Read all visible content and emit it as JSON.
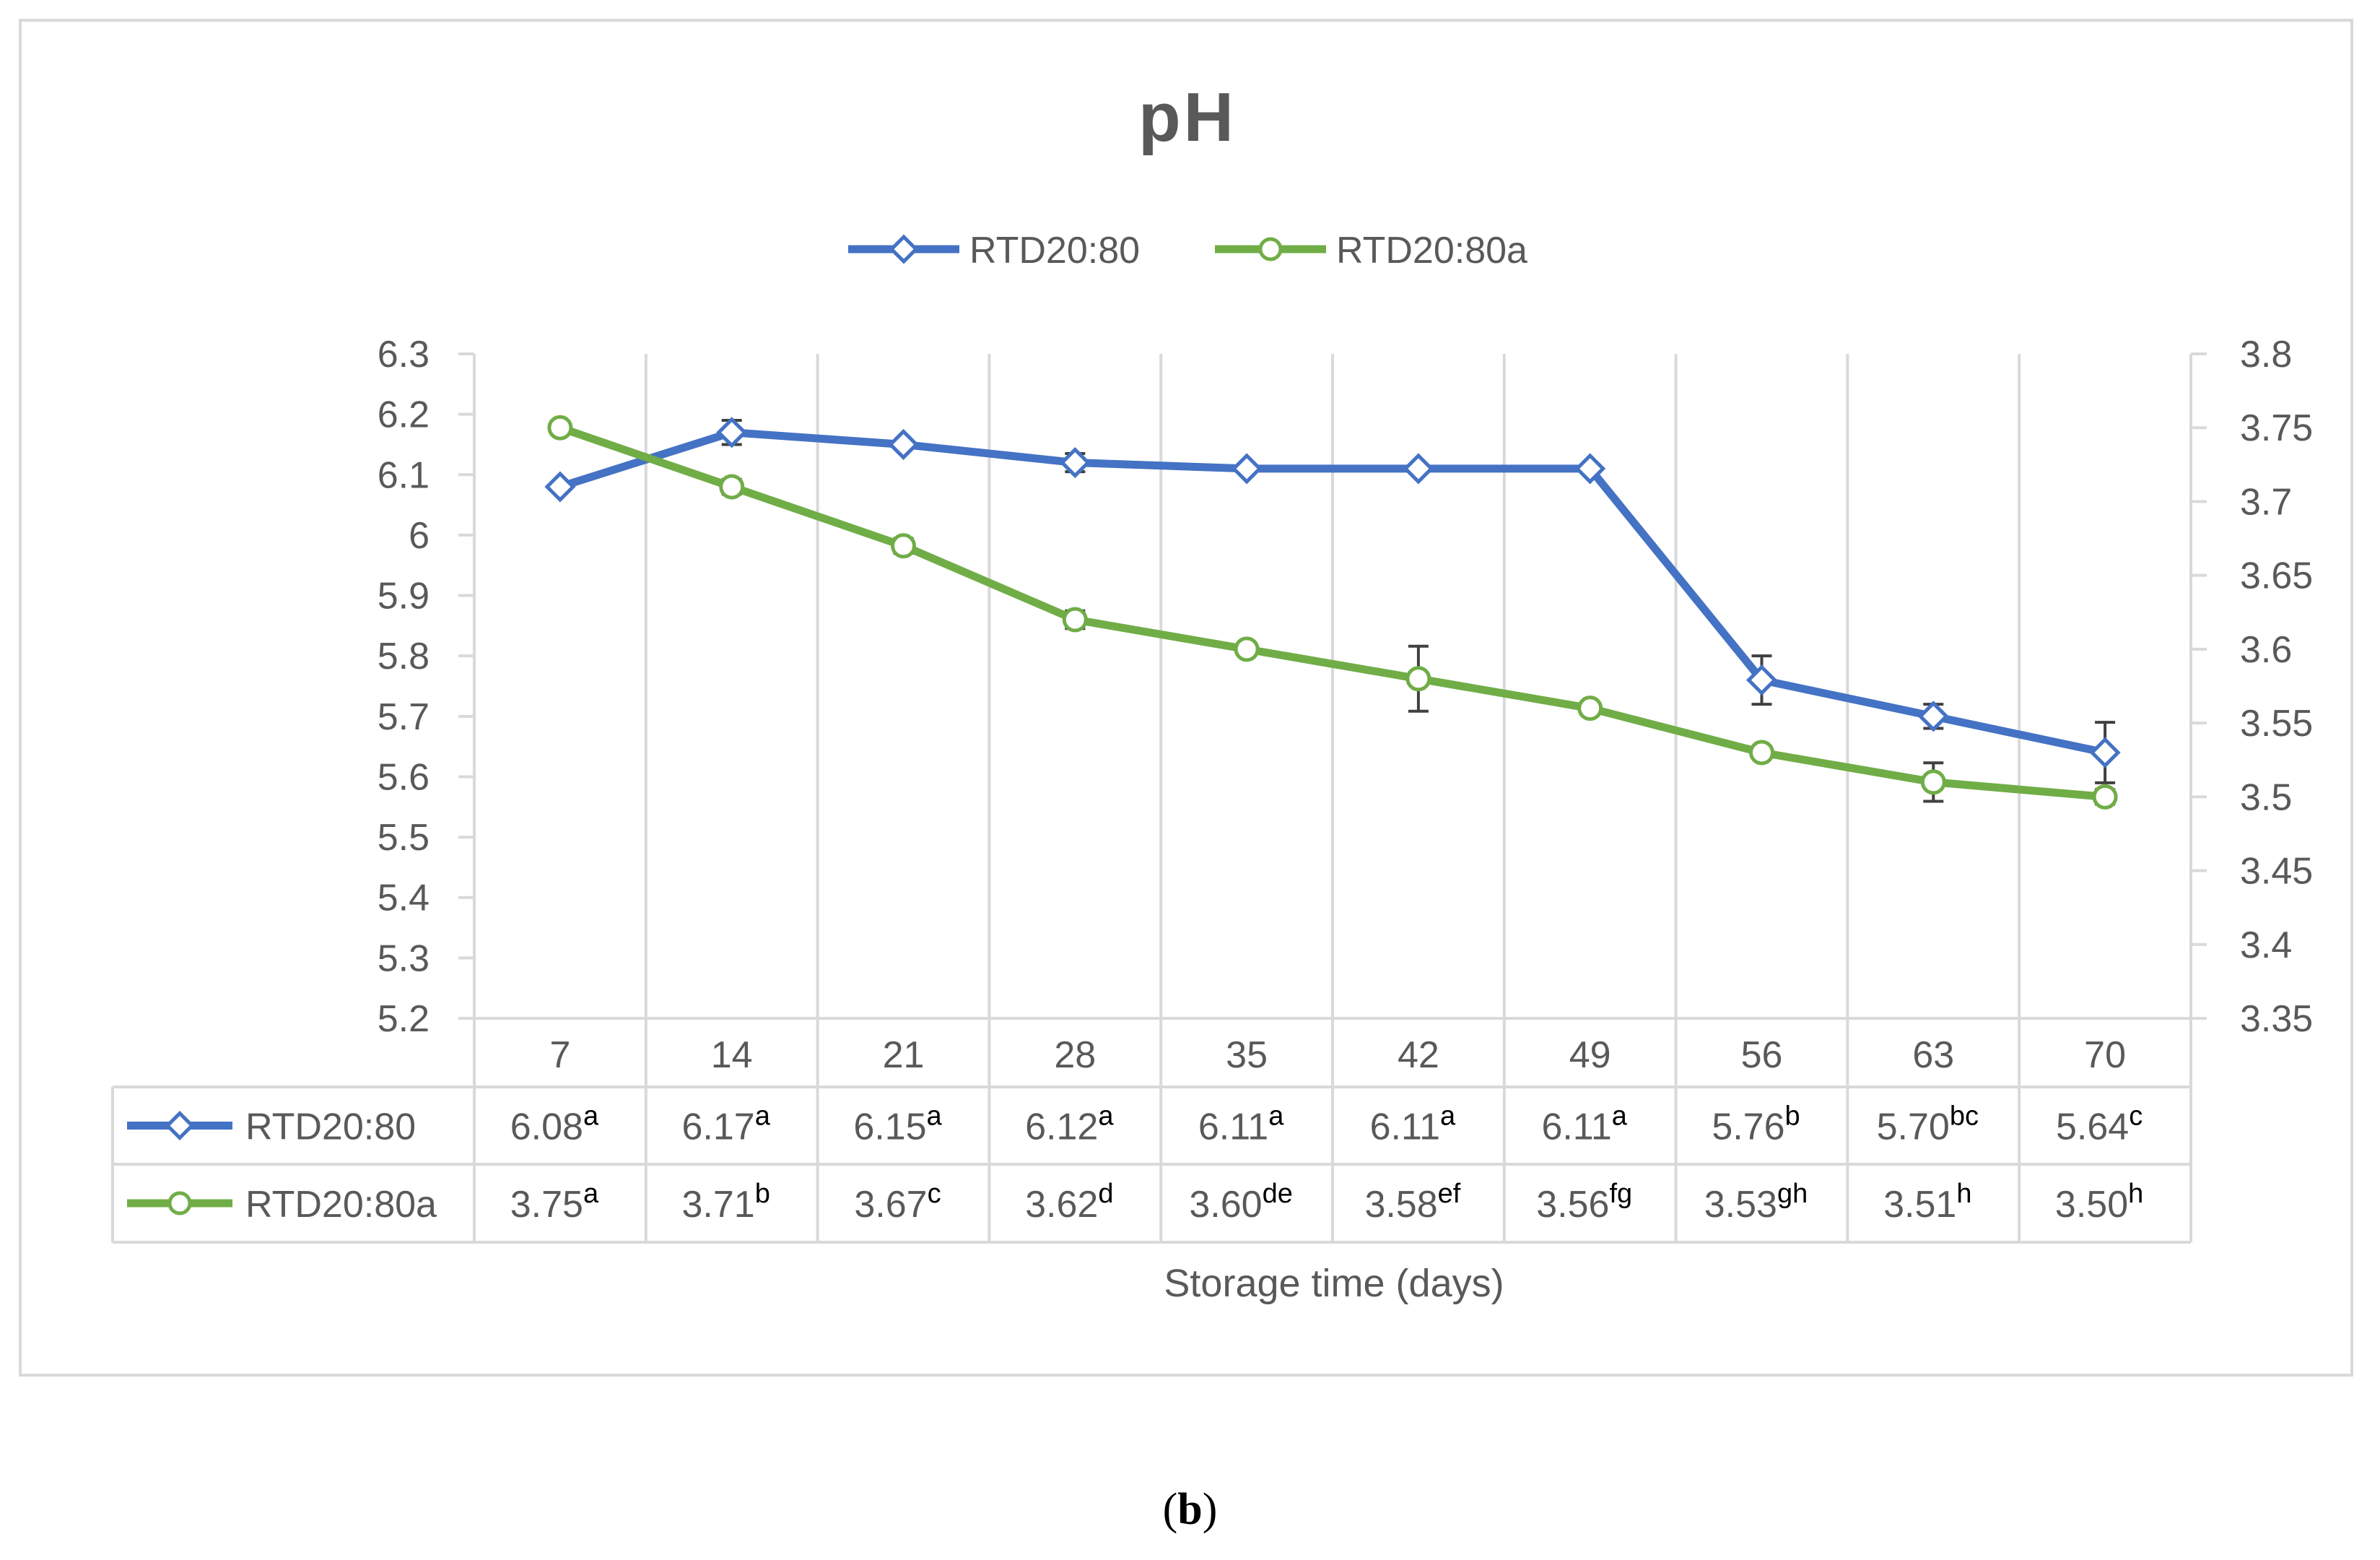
{
  "caption": {
    "open": "(",
    "label": "b",
    "close": ")"
  },
  "chart_data": {
    "type": "line",
    "title": "pH",
    "xlabel": "Storage time (days)",
    "legend_position": "top",
    "grid": "vertical",
    "categories": [
      "7",
      "14",
      "21",
      "28",
      "35",
      "42",
      "49",
      "56",
      "63",
      "70"
    ],
    "y_left": {
      "min": 5.2,
      "max": 6.3,
      "step": 0.1,
      "ticks": [
        "5.2",
        "5.3",
        "5.4",
        "5.5",
        "5.6",
        "5.7",
        "5.8",
        "5.9",
        "6",
        "6.1",
        "6.2",
        "6.3"
      ]
    },
    "y_right": {
      "min": 3.35,
      "max": 3.8,
      "step": 0.05,
      "ticks": [
        "3.35",
        "3.4",
        "3.45",
        "3.5",
        "3.55",
        "3.6",
        "3.65",
        "3.7",
        "3.75",
        "3.8"
      ]
    },
    "series": [
      {
        "name": "RTD20:80",
        "axis": "left",
        "color": "#4472c4",
        "marker": "diamond",
        "values": [
          6.08,
          6.17,
          6.15,
          6.12,
          6.11,
          6.11,
          6.11,
          5.76,
          5.7,
          5.64
        ],
        "errors": [
          0,
          0.02,
          0,
          0.015,
          0,
          0,
          0,
          0.04,
          0.02,
          0.05
        ],
        "table_values": [
          "6.08",
          "6.17",
          "6.15",
          "6.12",
          "6.11",
          "6.11",
          "6.11",
          "5.76",
          "5.70",
          "5.64"
        ],
        "letters": [
          "a",
          "a",
          "a",
          "a",
          "a",
          "a",
          "a",
          "b",
          "bc",
          "c"
        ]
      },
      {
        "name": "RTD20:80a",
        "axis": "right",
        "color": "#70ad47",
        "marker": "circle",
        "values": [
          3.75,
          3.71,
          3.67,
          3.62,
          3.6,
          3.58,
          3.56,
          3.53,
          3.51,
          3.5
        ],
        "errors": [
          0,
          0.005,
          0.005,
          0.006,
          0,
          0.022,
          0,
          0,
          0.013,
          0.005
        ],
        "table_values": [
          "3.75",
          "3.71",
          "3.67",
          "3.62",
          "3.60",
          "3.58",
          "3.56",
          "3.53",
          "3.51",
          "3.50"
        ],
        "letters": [
          "a",
          "b",
          "c",
          "d",
          "de",
          "ef",
          "fg",
          "gh",
          "h",
          "h"
        ]
      }
    ]
  }
}
